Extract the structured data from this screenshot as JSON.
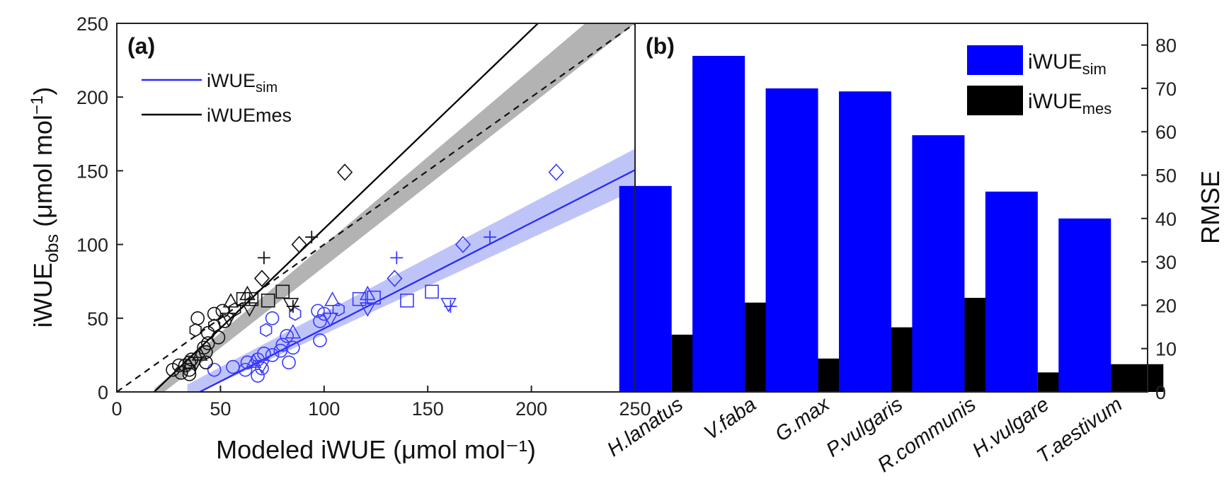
{
  "chart_data": [
    {
      "type": "scatter",
      "panel_label": "(a)",
      "xlabel": "Modeled iWUE (μmol mol⁻¹)",
      "ylabel": {
        "prefix": "iWUE",
        "subscript": "obs",
        "suffix": " (μmol mol",
        "sup": "−1",
        "close": ")"
      },
      "xlim": [
        0,
        250
      ],
      "ylim": [
        0,
        250
      ],
      "xticks": [
        "0",
        "50",
        "100",
        "150",
        "200",
        "250"
      ],
      "yticks": [
        "0",
        "50",
        "100",
        "150",
        "200",
        "250"
      ],
      "legend": {
        "position": "top-left",
        "entries": [
          {
            "main": "iWUE",
            "sub": "sim",
            "color": "#2a2aff"
          },
          {
            "main": "iWUEmes",
            "sub": "",
            "color": "#000000"
          }
        ]
      },
      "one_to_one_line": true,
      "regression": {
        "sim": {
          "slope": 0.717,
          "intercept": -28.7,
          "band_upper": [
            [
              34,
              5
            ],
            [
              250,
              165
            ]
          ],
          "band_lower": [
            [
              34,
              -4
            ],
            [
              250,
              137
            ]
          ],
          "color": "#2a2aff",
          "fill": "#aab0f5"
        },
        "mes": {
          "slope": 1.35,
          "intercept": -24.3,
          "band_upper": [
            [
              18,
              2
            ],
            [
              226,
              250
            ]
          ],
          "band_lower": [
            [
              21,
              -2
            ],
            [
              250,
              250
            ]
          ],
          "color": "#000000",
          "fill": "#a6a6a6"
        }
      },
      "series": [
        {
          "name": "iWUEsim",
          "color": "#3a3aff",
          "points": [
            {
              "x": 212,
              "y": 149,
              "m": "diamond"
            },
            {
              "x": 180,
              "y": 105,
              "m": "plus"
            },
            {
              "x": 167,
              "y": 100,
              "m": "diamond"
            },
            {
              "x": 135,
              "y": 91,
              "m": "plus"
            },
            {
              "x": 134,
              "y": 77,
              "m": "diamond"
            },
            {
              "x": 161,
              "y": 58,
              "m": "plus"
            },
            {
              "x": 160,
              "y": 60,
              "m": "triangle-down"
            },
            {
              "x": 152,
              "y": 68,
              "m": "square"
            },
            {
              "x": 140,
              "y": 62,
              "m": "square"
            },
            {
              "x": 124,
              "y": 64,
              "m": "square"
            },
            {
              "x": 117,
              "y": 63,
              "m": "square"
            },
            {
              "x": 121,
              "y": 66,
              "m": "triangle-up"
            },
            {
              "x": 121,
              "y": 57,
              "m": "triangle-down"
            },
            {
              "x": 104,
              "y": 62,
              "m": "triangle-up"
            },
            {
              "x": 107,
              "y": 56,
              "m": "hexagon"
            },
            {
              "x": 103,
              "y": 50,
              "m": "triangle-down"
            },
            {
              "x": 97,
              "y": 55,
              "m": "circle"
            },
            {
              "x": 98,
              "y": 48,
              "m": "circle"
            },
            {
              "x": 100,
              "y": 53,
              "m": "circle"
            },
            {
              "x": 98,
              "y": 35,
              "m": "circle"
            },
            {
              "x": 86,
              "y": 53,
              "m": "hexagon"
            },
            {
              "x": 75,
              "y": 50,
              "m": "circle"
            },
            {
              "x": 72,
              "y": 42,
              "m": "hexagon"
            },
            {
              "x": 85,
              "y": 40,
              "m": "triangle-up"
            },
            {
              "x": 82,
              "y": 38,
              "m": "circle"
            },
            {
              "x": 80,
              "y": 32,
              "m": "circle"
            },
            {
              "x": 85,
              "y": 30,
              "m": "circle"
            },
            {
              "x": 79,
              "y": 28,
              "m": "circle"
            },
            {
              "x": 75,
              "y": 25,
              "m": "circle"
            },
            {
              "x": 71,
              "y": 26,
              "m": "circle"
            },
            {
              "x": 68,
              "y": 22,
              "m": "circle"
            },
            {
              "x": 70,
              "y": 18,
              "m": "triangle-down"
            },
            {
              "x": 70,
              "y": 16,
              "m": "circle"
            },
            {
              "x": 63,
              "y": 20,
              "m": "circle"
            },
            {
              "x": 66,
              "y": 20,
              "m": "triangle-up"
            },
            {
              "x": 56,
              "y": 17,
              "m": "circle"
            },
            {
              "x": 62,
              "y": 15,
              "m": "circle"
            },
            {
              "x": 68,
              "y": 11,
              "m": "circle"
            },
            {
              "x": 47,
              "y": 15,
              "m": "circle"
            },
            {
              "x": 83,
              "y": 20,
              "m": "circle"
            }
          ]
        },
        {
          "name": "iWUEmes",
          "color": "#111111",
          "points": [
            {
              "x": 110,
              "y": 149,
              "m": "diamond"
            },
            {
              "x": 94,
              "y": 105,
              "m": "plus"
            },
            {
              "x": 88,
              "y": 100,
              "m": "diamond"
            },
            {
              "x": 71,
              "y": 91,
              "m": "plus"
            },
            {
              "x": 70,
              "y": 77,
              "m": "diamond"
            },
            {
              "x": 85,
              "y": 58,
              "m": "plus"
            },
            {
              "x": 84,
              "y": 60,
              "m": "triangle-down"
            },
            {
              "x": 80,
              "y": 68,
              "m": "square"
            },
            {
              "x": 73,
              "y": 62,
              "m": "square"
            },
            {
              "x": 65,
              "y": 63,
              "m": "square"
            },
            {
              "x": 61,
              "y": 63,
              "m": "square"
            },
            {
              "x": 63,
              "y": 66,
              "m": "triangle-up"
            },
            {
              "x": 64,
              "y": 57,
              "m": "triangle-down"
            },
            {
              "x": 55,
              "y": 61,
              "m": "triangle-up"
            },
            {
              "x": 57,
              "y": 56,
              "m": "hexagon"
            },
            {
              "x": 54,
              "y": 50,
              "m": "triangle-down"
            },
            {
              "x": 51,
              "y": 55,
              "m": "circle"
            },
            {
              "x": 47,
              "y": 53,
              "m": "circle"
            },
            {
              "x": 52,
              "y": 48,
              "m": "circle"
            },
            {
              "x": 39,
              "y": 50,
              "m": "circle"
            },
            {
              "x": 47,
              "y": 45,
              "m": "hexagon"
            },
            {
              "x": 38,
              "y": 42,
              "m": "hexagon"
            },
            {
              "x": 44,
              "y": 40,
              "m": "circle"
            },
            {
              "x": 49,
              "y": 37,
              "m": "circle"
            },
            {
              "x": 44,
              "y": 33,
              "m": "circle"
            },
            {
              "x": 42,
              "y": 30,
              "m": "circle"
            },
            {
              "x": 43,
              "y": 27,
              "m": "circle"
            },
            {
              "x": 40,
              "y": 25,
              "m": "triangle-up"
            },
            {
              "x": 36,
              "y": 22,
              "m": "circle"
            },
            {
              "x": 38,
              "y": 20,
              "m": "triangle-down"
            },
            {
              "x": 33,
              "y": 18,
              "m": "circle"
            },
            {
              "x": 30,
              "y": 18,
              "m": "circle"
            },
            {
              "x": 27,
              "y": 15,
              "m": "circle"
            },
            {
              "x": 35,
              "y": 15,
              "m": "circle"
            },
            {
              "x": 35,
              "y": 12,
              "m": "circle"
            },
            {
              "x": 43,
              "y": 20,
              "m": "circle"
            },
            {
              "x": 35,
              "y": 20,
              "m": "circle"
            },
            {
              "x": 31,
              "y": 13,
              "m": "circle"
            }
          ]
        }
      ]
    },
    {
      "type": "bar",
      "panel_label": "(b)",
      "ylabel": "RMSE",
      "ylim": [
        0,
        85
      ],
      "yticks": [
        "0",
        "10",
        "20",
        "30",
        "40",
        "50",
        "60",
        "70",
        "80"
      ],
      "categories": [
        "H.lanatus",
        "V.faba",
        "G.max",
        "P.vulgaris",
        "R.communis",
        "H.vulgare",
        "T.aestivum"
      ],
      "legend": {
        "position": "top-right",
        "entries": [
          {
            "main": "iWUE",
            "sub": "sim",
            "color": "#0000ff"
          },
          {
            "main": "iWUE",
            "sub": "mes",
            "color": "#000000"
          }
        ]
      },
      "series": [
        {
          "name": "iWUEsim",
          "color": "#0000ff",
          "values": [
            47.5,
            77.5,
            70,
            69.3,
            59.2,
            46.2,
            40
          ]
        },
        {
          "name": "iWUEmes",
          "color": "#000000",
          "values": [
            13.2,
            20.6,
            7.7,
            14.9,
            21.7,
            4.5,
            6.4
          ]
        }
      ]
    }
  ]
}
